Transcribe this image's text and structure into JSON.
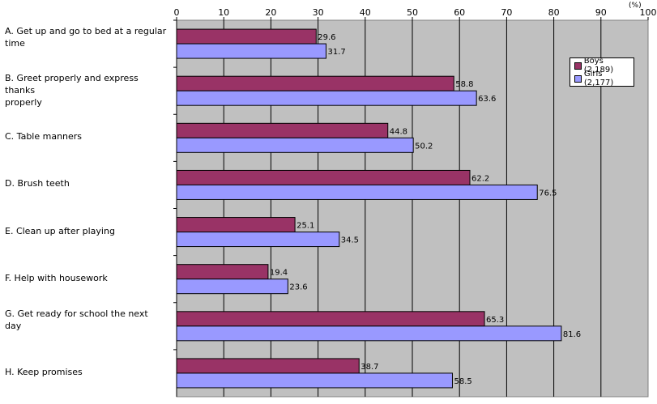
{
  "chart_data": {
    "type": "bar",
    "orientation": "horizontal",
    "unit_label": "(%)",
    "categories": [
      "A. Get up and go to bed at a regular time",
      "B. Greet properly and express thanks properly",
      "C. Table manners",
      "D. Brush teeth",
      "E. Clean up after playing",
      "F. Help with housework",
      "G. Get ready for school the next day",
      "H. Keep promises"
    ],
    "category_lines": [
      [
        "A. Get up and go to bed at a regular",
        "time"
      ],
      [
        "B. Greet properly and express thanks",
        "properly"
      ],
      [
        "C. Table manners"
      ],
      [
        "D. Brush teeth"
      ],
      [
        "E. Clean up after playing"
      ],
      [
        "F. Help with housework"
      ],
      [
        "G. Get ready for school the next",
        "day"
      ],
      [
        "H. Keep promises"
      ]
    ],
    "series": [
      {
        "name": "Boys (2,189)",
        "color": "#993366",
        "values": [
          29.6,
          58.8,
          44.8,
          62.2,
          25.1,
          19.4,
          65.3,
          38.7
        ],
        "labels": [
          "29.6",
          "58.8",
          "44.8",
          "62.2",
          "25.1",
          "19.4",
          "65.3",
          "38.7"
        ]
      },
      {
        "name": "Girls (2,177)",
        "color": "#9999ff",
        "values": [
          31.7,
          63.6,
          50.2,
          76.5,
          34.5,
          23.6,
          81.6,
          58.5
        ],
        "labels": [
          "31.7",
          "63.6",
          "50.2",
          "76.5",
          "34.5",
          "23.6",
          "81.6",
          "58.5"
        ]
      }
    ],
    "xlim": [
      0,
      100
    ],
    "xticks": [
      0,
      10,
      20,
      30,
      40,
      50,
      60,
      70,
      80,
      90,
      100
    ],
    "plot_background": "#c0c0c0",
    "grid": true,
    "legend_position": "top-right"
  }
}
